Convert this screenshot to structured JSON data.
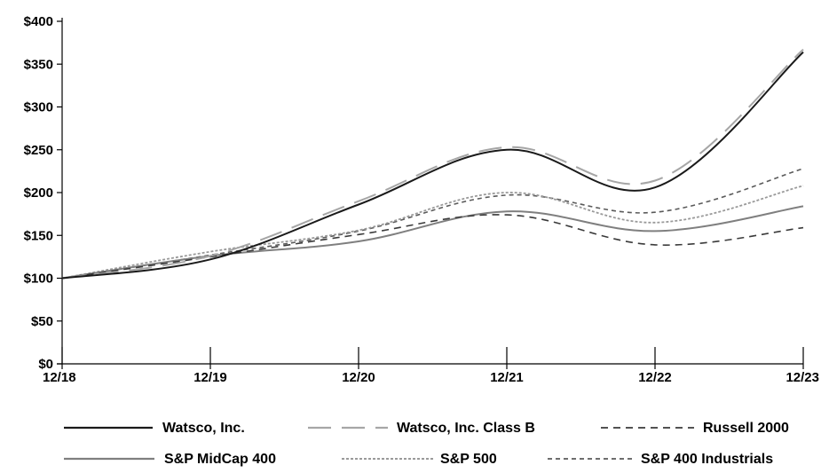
{
  "chart_data": {
    "type": "line",
    "title": "",
    "xlabel": "",
    "ylabel": "",
    "x": [
      "12/18",
      "12/19",
      "12/20",
      "12/21",
      "12/22",
      "12/23"
    ],
    "y_ticks": [
      "$0",
      "$50",
      "$100",
      "$150",
      "$200",
      "$250",
      "$300",
      "$350",
      "$400"
    ],
    "ylim": [
      0,
      400
    ],
    "grid": false,
    "legend_position": "bottom",
    "series": [
      {
        "name": "Watsco, Inc.",
        "values": [
          100,
          122,
          186,
          250,
          206,
          364
        ],
        "color": "#1a1a1a",
        "style": "solid"
      },
      {
        "name": "Watsco, Inc. Class B",
        "values": [
          100,
          126,
          190,
          253,
          214,
          367
        ],
        "color": "#a6a6a6",
        "style": "longdash"
      },
      {
        "name": "Russell 2000",
        "values": [
          100,
          125,
          151,
          174,
          139,
          159
        ],
        "color": "#3a3a3a",
        "style": "dash"
      },
      {
        "name": "S&P MidCap 400",
        "values": [
          100,
          126,
          143,
          178,
          155,
          184
        ],
        "color": "#7f7f7f",
        "style": "solid"
      },
      {
        "name": "S&P 500",
        "values": [
          100,
          131,
          156,
          200,
          165,
          208
        ],
        "color": "#9a9a9a",
        "style": "dot"
      },
      {
        "name": "S&P 400 Industrials",
        "values": [
          100,
          127,
          155,
          197,
          177,
          228
        ],
        "color": "#5a5a5a",
        "style": "finedash"
      }
    ]
  }
}
